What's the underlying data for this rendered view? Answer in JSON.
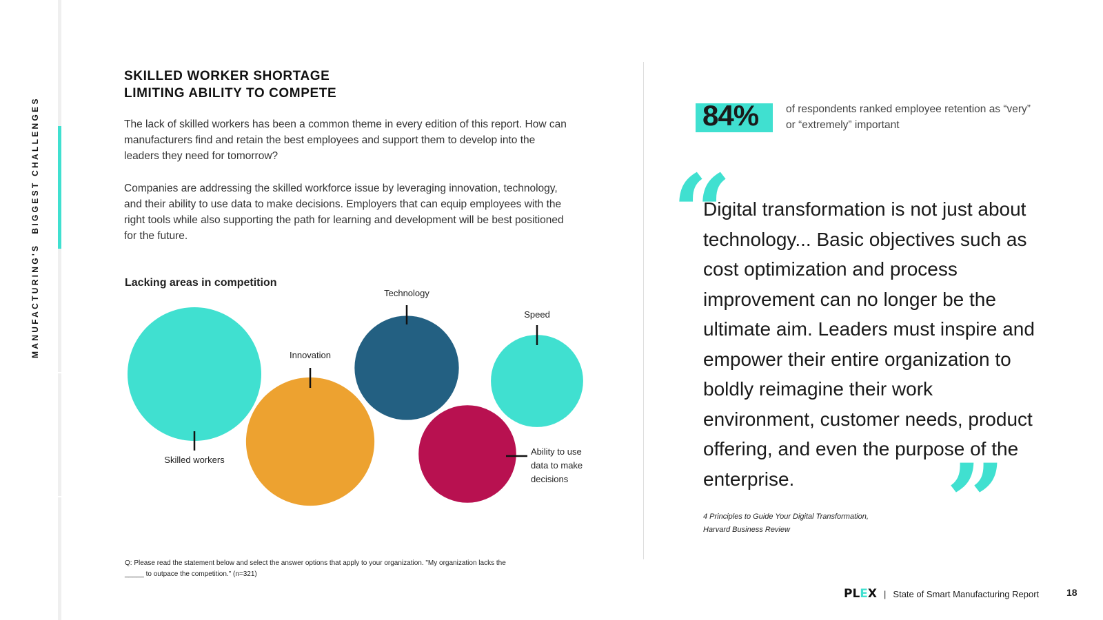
{
  "sidebar": {
    "label_part1": "MANUFACTURING'S",
    "label_part2": "BIGGEST CHALLENGES"
  },
  "section": {
    "title_line1": "SKILLED WORKER SHORTAGE",
    "title_line2": "LIMITING ABILITY TO COMPETE",
    "paragraph1": "The lack of skilled workers has been a common theme in every edition of this report. How can manufacturers find and retain the best employees and support them to develop into the leaders they need for tomorrow?",
    "paragraph2": "Companies are addressing the skilled workforce issue by leveraging innovation, technology, and their ability to use data to make decisions. Employers that can equip employees with the right tools while also supporting the path for learning and development will be best positioned for the future."
  },
  "chart_data": {
    "type": "bubble",
    "title": "Lacking areas in competition",
    "categories": [
      "Skilled workers",
      "Innovation",
      "Technology",
      "Speed",
      "Ability to use data to make decisions"
    ],
    "label_lines": [
      [
        "Skilled workers"
      ],
      [
        "Innovation"
      ],
      [
        "Technology"
      ],
      [
        "Speed"
      ],
      [
        "Ability to use",
        "data to make",
        "decisions"
      ]
    ],
    "relative_size": [
      1.0,
      0.96,
      0.78,
      0.69,
      0.73
    ],
    "colors": [
      "#40e0d0",
      "#eda230",
      "#236082",
      "#40e0d0",
      "#b81150"
    ]
  },
  "footnote": {
    "line1": "Q: Please read the statement below and select the answer options that apply to your organization. \"My organization lacks the",
    "line2": "_____ to outpace the competition.\" (n=321)"
  },
  "stat": {
    "value": "84%",
    "description": "of respondents ranked employee retention as “very” or “extremely” important"
  },
  "quote": {
    "open_mark": "“",
    "close_mark": "”",
    "text": "Digital transformation is not just about technology... Basic objectives such as cost optimization and process improvement can no longer be the ultimate aim. Leaders must inspire and empower their entire organization to boldly reimagine their work environment, customer needs, product offering, and even the purpose of the enterprise.",
    "source_line1": "4 Principles to Guide Your Digital Transformation,",
    "source_line2": "Harvard Business Review"
  },
  "footer": {
    "logo_part1": "PL",
    "logo_part2": "E",
    "logo_part3": "X",
    "separator": "|",
    "report_name": "State of Smart Manufacturing Report",
    "page_number": "18"
  },
  "colors": {
    "accent": "#40e0d0",
    "orange": "#eda230",
    "navy": "#236082",
    "magenta": "#b81150"
  }
}
